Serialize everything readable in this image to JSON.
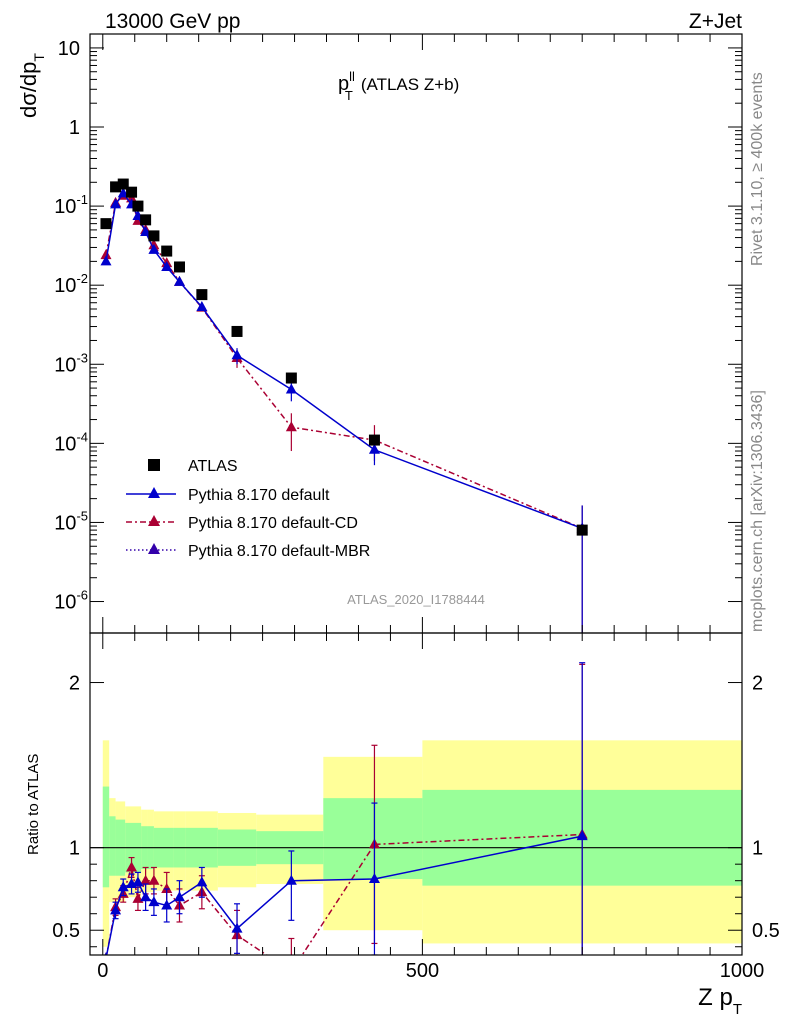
{
  "header": {
    "left": "13000 GeV pp",
    "right": "Z+Jet"
  },
  "side_labels": {
    "rivet": "Rivet 3.1.10, ≥ 400k events",
    "mcplots": "mcplots.cern.ch [arXiv:1306.3436]"
  },
  "analysis_id": "ATLAS_2020_I1788444",
  "colors": {
    "atlas": "#000000",
    "default": "#0000cc",
    "default_cd": "#aa0033",
    "default_mbr": "#3300aa",
    "band_inner": "#99ff99",
    "band_outer": "#ffff99"
  },
  "chart_data": [
    {
      "type": "line",
      "title": "p_T^{ll} (ATLAS Z+b)",
      "title_main": "p",
      "title_sup": "ll",
      "title_sub": "T",
      "title_rest": "(ATLAS Z+b)",
      "ylabel": "dσ/dp_T",
      "ylabel_main": "dσ/dp",
      "ylabel_sub": "T",
      "yscale": "log",
      "xlim": [
        -20,
        1000
      ],
      "ylim": [
        4e-07,
        15
      ],
      "y_ticks": [
        {
          "v": 10,
          "label": "10"
        },
        {
          "v": 1,
          "label": "1"
        },
        {
          "v": 0.1,
          "label": "10",
          "exp": "-1"
        },
        {
          "v": 0.01,
          "label": "10",
          "exp": "-2"
        },
        {
          "v": 0.001,
          "label": "10",
          "exp": "-3"
        },
        {
          "v": 0.0001,
          "label": "10",
          "exp": "-4"
        },
        {
          "v": 1e-05,
          "label": "10",
          "exp": "-5"
        },
        {
          "v": 1e-06,
          "label": "10",
          "exp": "-6"
        }
      ],
      "legend_position": "bottom-left",
      "series": [
        {
          "name": "ATLAS",
          "style": "square-markers",
          "x": [
            5,
            20,
            32,
            45,
            55,
            67,
            80,
            100,
            120,
            155,
            210,
            295,
            425,
            750
          ],
          "y": [
            0.06,
            0.175,
            0.19,
            0.15,
            0.1,
            0.067,
            0.042,
            0.027,
            0.017,
            0.0076,
            0.0026,
            0.00067,
            0.00011,
            8e-06
          ]
        },
        {
          "name": "Pythia 8.170 default",
          "style": "solid",
          "x": [
            5,
            20,
            32,
            45,
            55,
            67,
            80,
            100,
            120,
            155,
            210,
            295,
            425,
            750
          ],
          "y": [
            0.02,
            0.105,
            0.145,
            0.105,
            0.075,
            0.047,
            0.028,
            0.017,
            0.011,
            0.0053,
            0.0013,
            0.00048,
            8.3e-05,
            8.4e-06
          ],
          "err_up": [
            0,
            0,
            0,
            0,
            0,
            0,
            0,
            0,
            0,
            0,
            0.0003,
            0.00014,
            3e-05,
            8e-06
          ],
          "err_down": [
            0,
            0,
            0,
            0,
            0,
            0,
            0,
            0,
            0,
            0,
            0.0003,
            0.00014,
            3e-05,
            8.3e-06
          ]
        },
        {
          "name": "Pythia 8.170 default-CD",
          "style": "dash-dot",
          "x": [
            5,
            20,
            32,
            45,
            55,
            67,
            80,
            100,
            120,
            155,
            210,
            295,
            425,
            750
          ],
          "y": [
            0.024,
            0.11,
            0.135,
            0.125,
            0.065,
            0.05,
            0.032,
            0.019,
            0.011,
            0.0052,
            0.0012,
            0.00016,
            0.00011,
            8.4e-06
          ],
          "err_up": [
            0,
            0,
            0,
            0,
            0,
            0,
            0,
            0,
            0,
            0,
            0.0003,
            8e-05,
            6e-05,
            8e-06
          ],
          "err_down": [
            0,
            0,
            0,
            0,
            0,
            0,
            0,
            0,
            0,
            0,
            0.0003,
            8e-05,
            5e-05,
            8.3e-06
          ]
        },
        {
          "name": "Pythia 8.170 default-MBR",
          "style": "dotted",
          "x": [],
          "y": []
        }
      ]
    },
    {
      "type": "line",
      "ylabel": "Ratio to ATLAS",
      "xlabel": "Z p_T",
      "xlabel_main": "Z p",
      "xlabel_sub": "T",
      "xlim": [
        -20,
        1000
      ],
      "ylim": [
        0.35,
        2.3
      ],
      "x_ticks": [
        0,
        500,
        1000
      ],
      "y_ticks": [
        0.5,
        1,
        2
      ],
      "reference": 1,
      "bands": {
        "edges": [
          0,
          10,
          20,
          35,
          60,
          70,
          80,
          110,
          130,
          180,
          240,
          345,
          500,
          1000
        ],
        "inner_lo": [
          0.76,
          0.83,
          0.83,
          0.85,
          0.87,
          0.87,
          0.88,
          0.88,
          0.88,
          0.89,
          0.9,
          0.81,
          0.77
        ],
        "inner_hi": [
          1.37,
          1.19,
          1.17,
          1.15,
          1.13,
          1.13,
          1.12,
          1.12,
          1.12,
          1.11,
          1.1,
          1.3,
          1.35
        ],
        "outer_lo": [
          0.4,
          0.67,
          0.67,
          0.7,
          0.73,
          0.73,
          0.74,
          0.74,
          0.74,
          0.76,
          0.78,
          0.5,
          0.42
        ],
        "outer_hi": [
          1.65,
          1.3,
          1.28,
          1.25,
          1.23,
          1.23,
          1.22,
          1.22,
          1.22,
          1.21,
          1.2,
          1.55,
          1.65
        ]
      },
      "series": [
        {
          "name": "Pythia 8.170 default",
          "style": "solid",
          "x": [
            5,
            20,
            32,
            45,
            55,
            67,
            80,
            100,
            120,
            155,
            210,
            295,
            425,
            750
          ],
          "y": [
            0.33,
            0.62,
            0.76,
            0.78,
            0.79,
            0.7,
            0.67,
            0.65,
            0.7,
            0.79,
            0.51,
            0.8,
            0.81,
            1.07
          ],
          "err_up": [
            0,
            0.05,
            0.05,
            0.06,
            0.06,
            0.08,
            0.08,
            0.1,
            0.1,
            0.09,
            0.15,
            0.18,
            0.46,
            1.05
          ],
          "err_down": [
            0,
            0.05,
            0.05,
            0.06,
            0.06,
            0.08,
            0.08,
            0.1,
            0.1,
            0.09,
            0.15,
            0.24,
            0.46,
            1.05
          ]
        },
        {
          "name": "Pythia 8.170 default-CD",
          "style": "dash-dot",
          "x": [
            5,
            20,
            32,
            45,
            55,
            67,
            80,
            100,
            120,
            155,
            210,
            295,
            425,
            750
          ],
          "y": [
            0.33,
            0.64,
            0.72,
            0.88,
            0.69,
            0.8,
            0.8,
            0.75,
            0.65,
            0.73,
            0.47,
            0.25,
            1.02,
            1.08
          ],
          "err_up": [
            0,
            0.05,
            0.05,
            0.06,
            0.07,
            0.08,
            0.08,
            0.1,
            0.1,
            0.1,
            0.15,
            0.2,
            0.6,
            1.03
          ],
          "err_down": [
            0,
            0.05,
            0.05,
            0.06,
            0.07,
            0.08,
            0.08,
            0.1,
            0.1,
            0.1,
            0.15,
            0.2,
            0.6,
            1.08
          ]
        }
      ]
    }
  ]
}
